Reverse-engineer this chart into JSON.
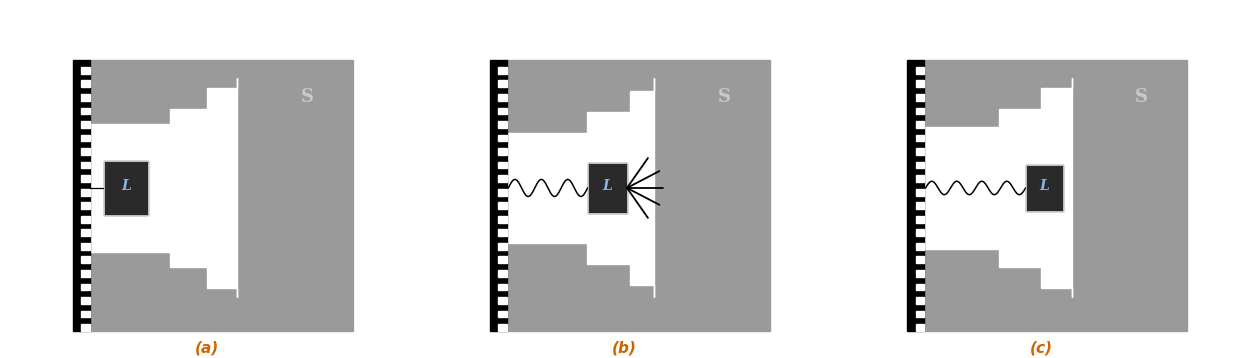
{
  "background_color": "#ffffff",
  "gray_color": "#9a9a9a",
  "dark_ligand": "#2a2a2a",
  "white": "#ffffff",
  "label_color": "#8ab4e8",
  "panel_labels": [
    "(a)",
    "(b)",
    "(c)"
  ],
  "S_label_color": "#c8c8c8",
  "label_orange": "#cc6600",
  "fig_width": 12.48,
  "fig_height": 3.58,
  "wall_stripe_color": "#000000",
  "wall_white_color": "#ffffff"
}
